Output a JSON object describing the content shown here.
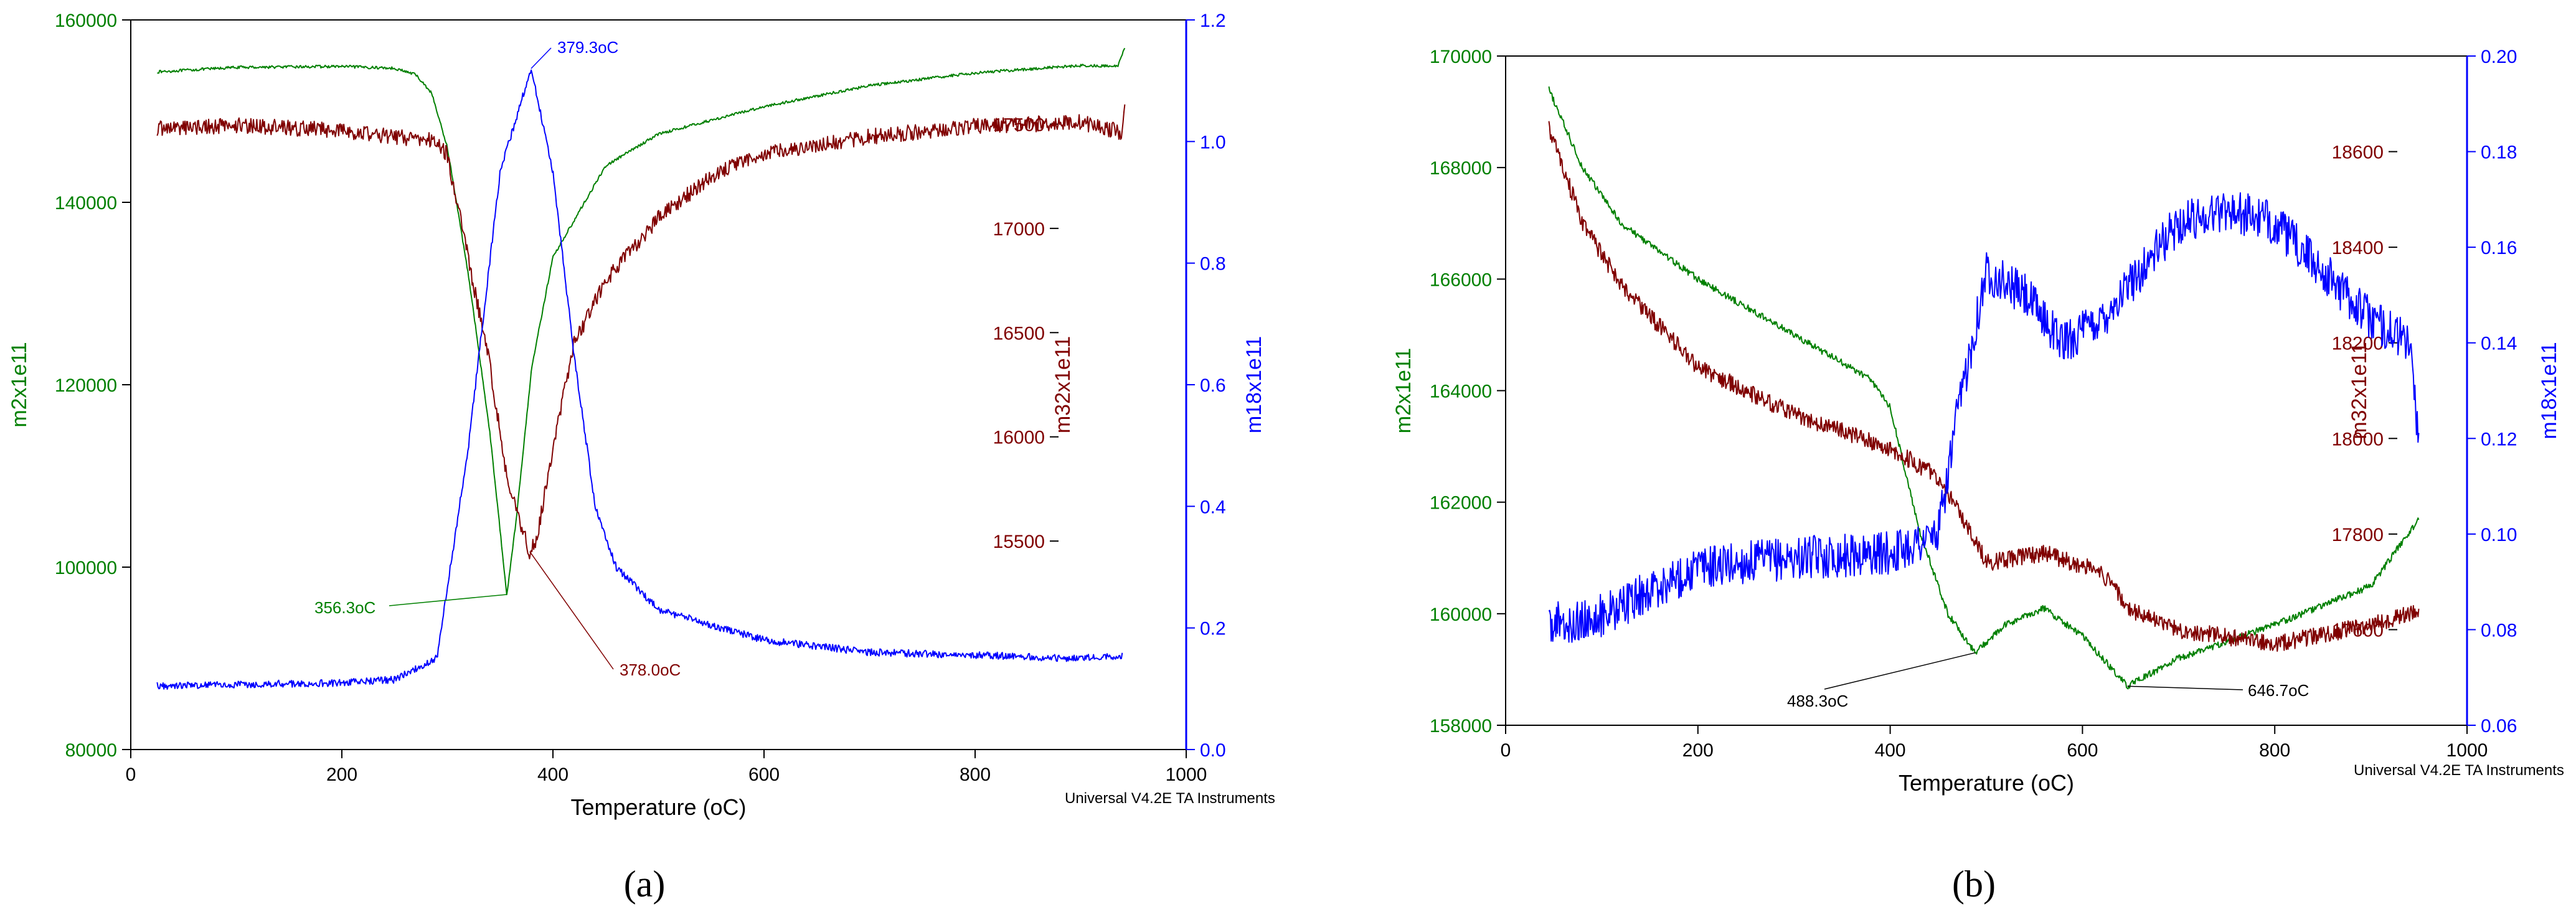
{
  "chart_data": [
    {
      "type": "line",
      "panel_label": "(a)",
      "xlabel": "Temperature (oC)",
      "xlim": [
        0,
        1000
      ],
      "x_ticks": [
        0,
        200,
        400,
        600,
        800,
        1000
      ],
      "footer": "Universal V4.2E TA Instruments",
      "axes": [
        {
          "id": "m2",
          "label": "m2x1e11",
          "color": "#008000",
          "lim": [
            80000,
            160000
          ],
          "ticks": [
            80000,
            100000,
            120000,
            140000,
            160000
          ],
          "tick_labels": [
            "80000",
            "100000",
            "120000",
            "140000",
            "160000"
          ]
        },
        {
          "id": "m32",
          "label": "m32x1e11",
          "color": "#800000",
          "lim": [
            14500,
            18000
          ],
          "ticks": [
            15500,
            16000,
            16500,
            17000,
            17500
          ],
          "tick_labels": [
            "15500",
            "16000",
            "16500",
            "17000",
            "17500"
          ]
        },
        {
          "id": "m18",
          "label": "m18x1e11",
          "color": "#0000ff",
          "lim": [
            0,
            1.2
          ],
          "ticks": [
            0,
            0.2,
            0.4,
            0.6,
            0.8,
            1.0,
            1.2
          ],
          "tick_labels": [
            "0.0",
            "0.2",
            "0.4",
            "0.6",
            "0.8",
            "1.0",
            "1.2"
          ]
        }
      ],
      "series": [
        {
          "name": "m2",
          "axis": "m2",
          "noise": 150,
          "points": [
            [
              25,
              154300
            ],
            [
              100,
              154800
            ],
            [
              200,
              154900
            ],
            [
              250,
              154700
            ],
            [
              270,
              154000
            ],
            [
              285,
              152000
            ],
            [
              300,
              146000
            ],
            [
              320,
              132000
            ],
            [
              340,
              115000
            ],
            [
              356.3,
              97000
            ],
            [
              365,
              105000
            ],
            [
              380,
              122000
            ],
            [
              400,
              134000
            ],
            [
              450,
              144000
            ],
            [
              500,
              147500
            ],
            [
              600,
              150500
            ],
            [
              700,
              152800
            ],
            [
              800,
              154200
            ],
            [
              900,
              155000
            ],
            [
              935,
              154900
            ],
            [
              942,
              157000
            ]
          ]
        },
        {
          "name": "m32",
          "axis": "m32",
          "noise": 38,
          "points": [
            [
              25,
              17480
            ],
            [
              100,
              17495
            ],
            [
              200,
              17470
            ],
            [
              250,
              17440
            ],
            [
              290,
              17420
            ],
            [
              300,
              17350
            ],
            [
              320,
              16850
            ],
            [
              340,
              16350
            ],
            [
              355,
              15850
            ],
            [
              365,
              15650
            ],
            [
              378,
              15450
            ],
            [
              385,
              15520
            ],
            [
              400,
              15950
            ],
            [
              420,
              16450
            ],
            [
              450,
              16750
            ],
            [
              500,
              17050
            ],
            [
              550,
              17250
            ],
            [
              600,
              17360
            ],
            [
              700,
              17440
            ],
            [
              800,
              17490
            ],
            [
              900,
              17510
            ],
            [
              940,
              17460
            ],
            [
              942,
              17600
            ]
          ]
        },
        {
          "name": "m18",
          "axis": "m18",
          "noise": 0.006,
          "points": [
            [
              25,
              0.105
            ],
            [
              100,
              0.107
            ],
            [
              200,
              0.11
            ],
            [
              250,
              0.115
            ],
            [
              290,
              0.15
            ],
            [
              320,
              0.5
            ],
            [
              350,
              0.95
            ],
            [
              379.3,
              1.12
            ],
            [
              400,
              0.95
            ],
            [
              420,
              0.65
            ],
            [
              440,
              0.4
            ],
            [
              460,
              0.3
            ],
            [
              500,
              0.23
            ],
            [
              600,
              0.18
            ],
            [
              700,
              0.16
            ],
            [
              800,
              0.155
            ],
            [
              900,
              0.15
            ],
            [
              940,
              0.155
            ]
          ]
        }
      ],
      "annotations": [
        {
          "text": "379.3oC",
          "axis": "m18",
          "x": 379.3,
          "y": 1.12,
          "color": "#0000ff"
        },
        {
          "text": "356.3oC",
          "axis": "m2",
          "x": 356.3,
          "y": 97000,
          "color": "#008000"
        },
        {
          "text": "378.0oC",
          "axis": "m32",
          "x": 378,
          "y": 15450,
          "color": "#800000"
        }
      ]
    },
    {
      "type": "line",
      "panel_label": "(b)",
      "xlabel": "Temperature (oC)",
      "xlim": [
        0,
        1000
      ],
      "x_ticks": [
        0,
        200,
        400,
        600,
        800,
        1000
      ],
      "footer": "Universal V4.2E TA Instruments",
      "axes": [
        {
          "id": "m2",
          "label": "m2x1e11",
          "color": "#008000",
          "lim": [
            158000,
            170000
          ],
          "ticks": [
            158000,
            160000,
            162000,
            164000,
            166000,
            168000,
            170000
          ],
          "tick_labels": [
            "158000",
            "160000",
            "162000",
            "164000",
            "166000",
            "168000",
            "170000"
          ]
        },
        {
          "id": "m32",
          "label": "m32x1e11",
          "color": "#800000",
          "lim": [
            17400,
            18800
          ],
          "ticks": [
            17600,
            17800,
            18000,
            18200,
            18400,
            18600
          ],
          "tick_labels": [
            "17600",
            "17800",
            "18000",
            "18200",
            "18400",
            "18600"
          ]
        },
        {
          "id": "m18",
          "label": "m18x1e11",
          "color": "#0000ff",
          "lim": [
            0.06,
            0.2
          ],
          "ticks": [
            0.06,
            0.08,
            0.1,
            0.12,
            0.14,
            0.16,
            0.18,
            0.2
          ],
          "tick_labels": [
            "0.06",
            "0.08",
            "0.10",
            "0.12",
            "0.14",
            "0.16",
            "0.18",
            "0.20"
          ]
        }
      ],
      "series": [
        {
          "name": "m2",
          "axis": "m2",
          "noise": 60,
          "points": [
            [
              45,
              169400
            ],
            [
              80,
              168000
            ],
            [
              120,
              167000
            ],
            [
              200,
              166000
            ],
            [
              300,
              165000
            ],
            [
              380,
              164200
            ],
            [
              400,
              163700
            ],
            [
              430,
              161500
            ],
            [
              460,
              160000
            ],
            [
              488.3,
              159300
            ],
            [
              520,
              159800
            ],
            [
              560,
              160100
            ],
            [
              600,
              159600
            ],
            [
              646.7,
              158700
            ],
            [
              700,
              159200
            ],
            [
              800,
              159800
            ],
            [
              900,
              160500
            ],
            [
              950,
              161700
            ]
          ]
        },
        {
          "name": "m32",
          "axis": "m32",
          "noise": 18,
          "points": [
            [
              45,
              18650
            ],
            [
              80,
              18450
            ],
            [
              120,
              18320
            ],
            [
              200,
              18150
            ],
            [
              300,
              18050
            ],
            [
              400,
              17980
            ],
            [
              450,
              17920
            ],
            [
              480,
              17820
            ],
            [
              500,
              17740
            ],
            [
              560,
              17760
            ],
            [
              620,
              17720
            ],
            [
              650,
              17640
            ],
            [
              700,
              17600
            ],
            [
              800,
              17570
            ],
            [
              900,
              17610
            ],
            [
              950,
              17640
            ]
          ]
        },
        {
          "name": "m18",
          "axis": "m18",
          "noise": 0.0045,
          "points": [
            [
              45,
              0.081
            ],
            [
              100,
              0.083
            ],
            [
              150,
              0.088
            ],
            [
              200,
              0.093
            ],
            [
              300,
              0.095
            ],
            [
              400,
              0.096
            ],
            [
              450,
              0.1
            ],
            [
              470,
              0.125
            ],
            [
              500,
              0.155
            ],
            [
              540,
              0.15
            ],
            [
              580,
              0.14
            ],
            [
              620,
              0.145
            ],
            [
              660,
              0.155
            ],
            [
              700,
              0.165
            ],
            [
              750,
              0.168
            ],
            [
              800,
              0.165
            ],
            [
              850,
              0.155
            ],
            [
              900,
              0.145
            ],
            [
              940,
              0.14
            ],
            [
              950,
              0.12
            ]
          ]
        }
      ],
      "annotations": [
        {
          "text": "488.3oC",
          "axis": "m2",
          "x": 488.3,
          "y": 159300,
          "color": "#000000"
        },
        {
          "text": "646.7oC",
          "axis": "m2",
          "x": 646.7,
          "y": 158700,
          "color": "#000000"
        }
      ]
    }
  ]
}
